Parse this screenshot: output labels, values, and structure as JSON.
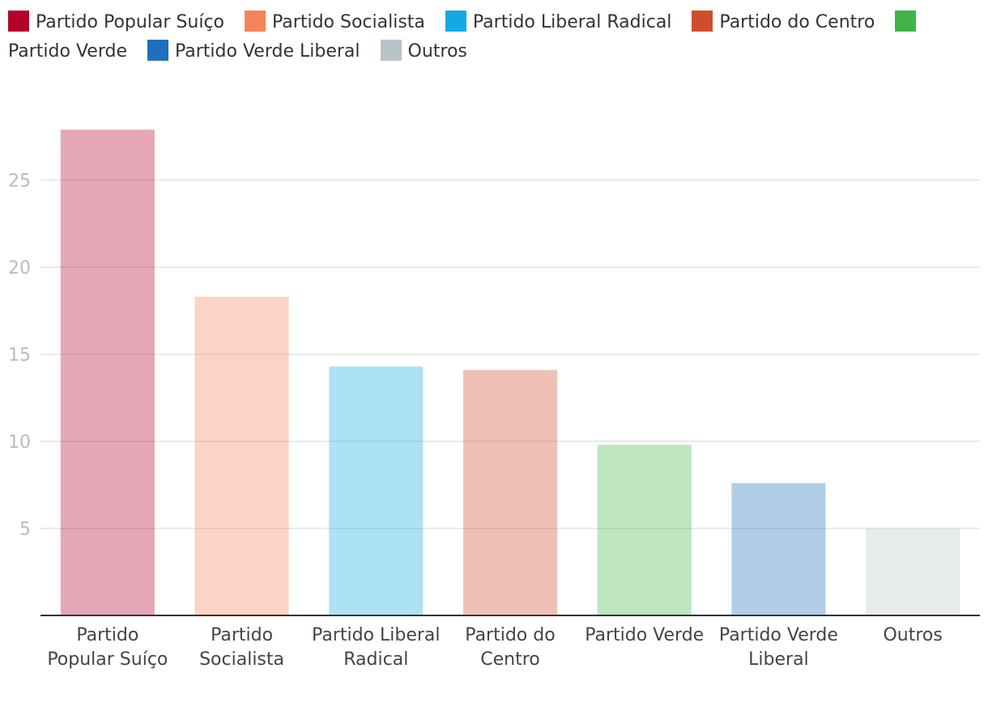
{
  "chart_data": {
    "type": "bar",
    "categories": [
      "Partido Popular Suíço",
      "Partido Socialista",
      "Partido Liberal Radical",
      "Partido do Centro",
      "Partido Verde",
      "Partido Verde Liberal",
      "Outros"
    ],
    "series": [
      {
        "name": "Partido Popular Suíço",
        "color": "#b5002a"
      },
      {
        "name": "Partido Socialista",
        "color": "#f5845a"
      },
      {
        "name": "Partido Liberal Radical",
        "color": "#14a9e4"
      },
      {
        "name": "Partido do Centro",
        "color": "#d04d2c"
      },
      {
        "name": "Partido Verde",
        "color": "#40b44a"
      },
      {
        "name": "Partido Verde Liberal",
        "color": "#1f6fbc"
      },
      {
        "name": "Outros",
        "color": "#b7c5c8"
      }
    ],
    "values": [
      27.9,
      18.3,
      14.3,
      14.1,
      9.8,
      7.6,
      5.0
    ],
    "ylim": [
      0,
      28
    ],
    "yticks": [
      5,
      10,
      15,
      20,
      25
    ],
    "grid": true,
    "legend": "top"
  }
}
